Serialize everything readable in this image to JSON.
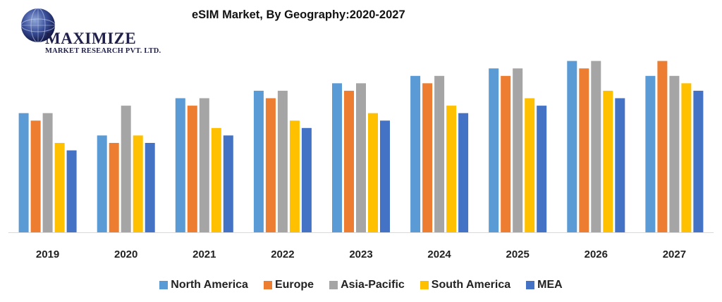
{
  "logo": {
    "brand": "MAXIMIZE",
    "subtitle": "MARKET RESEARCH PVT. LTD."
  },
  "chart_data": {
    "type": "bar",
    "title": "eSIM Market, By Geography:2020-2027",
    "xlabel": "",
    "ylabel": "",
    "ylim": [
      0,
      24
    ],
    "grid": false,
    "legend_position": "bottom",
    "categories": [
      "2019",
      "2020",
      "2021",
      "2022",
      "2023",
      "2024",
      "2025",
      "2026",
      "2027"
    ],
    "series": [
      {
        "name": "North America",
        "color": "#5b9bd5",
        "values": [
          16,
          13,
          18,
          19,
          20,
          21,
          22,
          23,
          21
        ]
      },
      {
        "name": "Europe",
        "color": "#ed7d31",
        "values": [
          15,
          12,
          17,
          18,
          19,
          20,
          21,
          22,
          23
        ]
      },
      {
        "name": "Asia-Pacific",
        "color": "#a5a5a5",
        "values": [
          16,
          17,
          18,
          19,
          20,
          21,
          22,
          23,
          21
        ]
      },
      {
        "name": "South America",
        "color": "#ffc000",
        "values": [
          12,
          13,
          14,
          15,
          16,
          17,
          18,
          19,
          20
        ]
      },
      {
        "name": "MEA",
        "color": "#4472c4",
        "values": [
          11,
          12,
          13,
          14,
          15,
          16,
          17,
          18,
          19
        ]
      }
    ]
  }
}
